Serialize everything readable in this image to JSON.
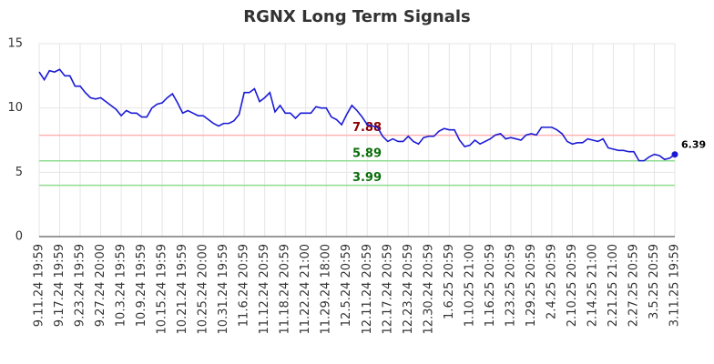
{
  "chart_data": {
    "type": "line",
    "title": "RGNX Long Term Signals",
    "categories": [
      "9.11.24 19:59",
      null,
      null,
      null,
      "9.17.24 19:59",
      null,
      null,
      null,
      "9.23.24 19:59",
      null,
      null,
      null,
      "9.27.24 20:00",
      null,
      null,
      null,
      "10.3.24 19:59",
      null,
      null,
      null,
      "10.9.24 19:59",
      null,
      null,
      null,
      "10.15.24 19:59",
      null,
      null,
      null,
      "10.21.24 19:59",
      null,
      null,
      null,
      "10.25.24 20:00",
      null,
      null,
      null,
      "10.31.24 19:59",
      null,
      null,
      null,
      "11.6.24 20:59",
      null,
      null,
      null,
      "11.12.24 20:59",
      null,
      null,
      null,
      "11.18.24 20:59",
      null,
      null,
      null,
      "11.22.24 21:00",
      null,
      null,
      null,
      "11.29.24 18:00",
      null,
      null,
      null,
      "12.5.24 20:59",
      null,
      null,
      null,
      "12.11.24 20:59",
      null,
      null,
      null,
      "12.17.24 20:59",
      null,
      null,
      null,
      "12.23.24 20:59",
      null,
      null,
      null,
      "12.30.24 20:59",
      null,
      null,
      null,
      "1.6.25 20:59",
      null,
      null,
      null,
      "1.10.25 21:00",
      null,
      null,
      null,
      "1.16.25 20:59",
      null,
      null,
      null,
      "1.23.25 20:59",
      null,
      null,
      null,
      "1.29.25 20:59",
      null,
      null,
      null,
      "2.4.25 20:59",
      null,
      null,
      null,
      "2.10.25 20:59",
      null,
      null,
      null,
      "2.14.25 21:00",
      null,
      null,
      null,
      "2.21.25 21:00",
      null,
      null,
      null,
      "2.27.25 20:59",
      null,
      null,
      null,
      "3.5.25 20:59",
      null,
      null,
      null,
      "3.11.25 19:59"
    ],
    "series": [
      {
        "color": "#1a1ad6",
        "values": [
          12.8,
          12.2,
          12.9,
          12.8,
          13.0,
          12.5,
          12.5,
          11.7,
          11.7,
          11.2,
          10.8,
          10.7,
          10.8,
          10.5,
          10.2,
          9.9,
          9.4,
          9.8,
          9.6,
          9.6,
          9.3,
          9.3,
          10.0,
          10.3,
          10.4,
          10.8,
          11.1,
          10.4,
          9.6,
          9.8,
          9.6,
          9.4,
          9.4,
          9.1,
          8.8,
          8.6,
          8.8,
          8.8,
          9.0,
          9.5,
          11.2,
          11.2,
          11.5,
          10.5,
          10.8,
          11.2,
          9.7,
          10.2,
          9.6,
          9.6,
          9.2,
          9.6,
          9.6,
          9.6,
          10.1,
          10.0,
          10.0,
          9.3,
          9.1,
          8.7,
          9.5,
          10.2,
          9.8,
          9.3,
          8.7,
          8.6,
          8.5,
          7.8,
          7.4,
          7.6,
          7.4,
          7.4,
          7.8,
          7.4,
          7.2,
          7.7,
          7.8,
          7.8,
          8.2,
          8.4,
          8.3,
          8.3,
          7.5,
          7.0,
          7.1,
          7.5,
          7.2,
          7.4,
          7.6,
          7.9,
          8.0,
          7.6,
          7.7,
          7.6,
          7.5,
          7.9,
          8.0,
          7.9,
          8.5,
          8.5,
          8.5,
          8.3,
          8.0,
          7.4,
          7.2,
          7.3,
          7.3,
          7.6,
          7.5,
          7.4,
          7.6,
          6.9,
          6.8,
          6.7,
          6.7,
          6.6,
          6.6,
          5.9,
          5.9,
          6.2,
          6.4,
          6.3,
          6.0,
          6.1,
          6.39
        ]
      }
    ],
    "hlines": [
      {
        "value": 7.88,
        "color": "#ffb3b3",
        "text_color": "#8b0000"
      },
      {
        "value": 5.89,
        "color": "#90dc90",
        "text_color": "#0a6e0a"
      },
      {
        "value": 3.99,
        "color": "#90dc90",
        "text_color": "#0a6e0a"
      }
    ],
    "ylim": [
      0,
      15
    ],
    "yticks": [
      0,
      5,
      10,
      15
    ],
    "grid": true
  }
}
